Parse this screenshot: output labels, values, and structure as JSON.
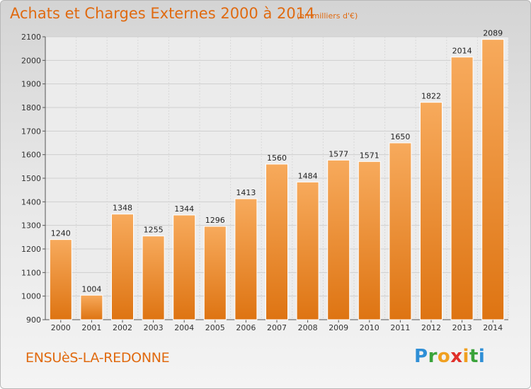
{
  "header": {
    "title": "Achats et Charges Externes 2000 à 2014",
    "subtitle": "(en milliers d'€)"
  },
  "footer": {
    "city": "ENSUèS-LA-REDONNE",
    "logo_text": "Proxiti"
  },
  "colors": {
    "bar_light": "#f7a95a",
    "bar_dark": "#e07818",
    "title": "#e06a10",
    "grid": "#c8c8c8"
  },
  "chart_data": {
    "type": "bar",
    "title": "Achats et Charges Externes 2000 à 2014",
    "subtitle": "(en milliers d'€)",
    "xlabel": "",
    "ylabel": "",
    "categories": [
      "2000",
      "2001",
      "2002",
      "2003",
      "2004",
      "2005",
      "2006",
      "2007",
      "2008",
      "2009",
      "2010",
      "2011",
      "2012",
      "2013",
      "2014"
    ],
    "values": [
      1240,
      1004,
      1348,
      1255,
      1344,
      1296,
      1413,
      1560,
      1484,
      1577,
      1571,
      1650,
      1822,
      2014,
      2089
    ],
    "ylim": [
      900,
      2100
    ],
    "yticks": [
      900,
      1000,
      1100,
      1200,
      1300,
      1400,
      1500,
      1600,
      1700,
      1800,
      1900,
      2000,
      2100
    ],
    "grid": true,
    "data_labels": true
  }
}
